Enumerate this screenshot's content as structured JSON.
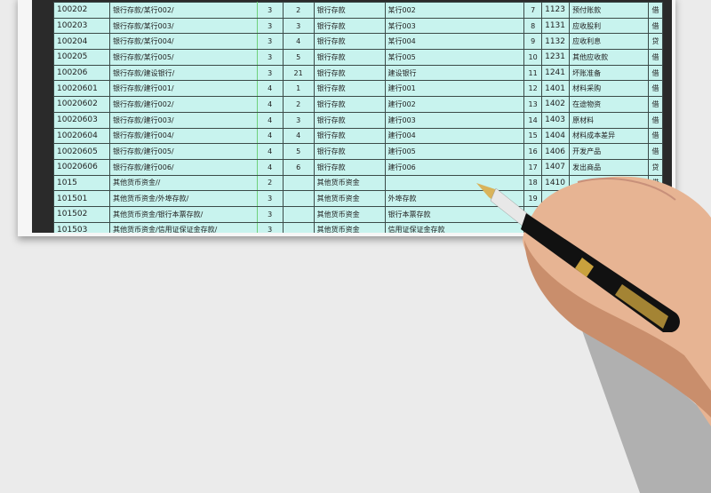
{
  "rows": [
    {
      "code": "100202",
      "path": "银行存款/某行002/",
      "level": "3",
      "sub": "2",
      "parent": "银行存款",
      "name": "某行002",
      "seq": "7",
      "acct_code": "1123",
      "acct_name": "预付账款",
      "dir": "借"
    },
    {
      "code": "100203",
      "path": "银行存款/某行003/",
      "level": "3",
      "sub": "3",
      "parent": "银行存款",
      "name": "某行003",
      "seq": "8",
      "acct_code": "1131",
      "acct_name": "应收股利",
      "dir": "借"
    },
    {
      "code": "100204",
      "path": "银行存款/某行004/",
      "level": "3",
      "sub": "4",
      "parent": "银行存款",
      "name": "某行004",
      "seq": "9",
      "acct_code": "1132",
      "acct_name": "应收利息",
      "dir": "贷"
    },
    {
      "code": "100205",
      "path": "银行存款/某行005/",
      "level": "3",
      "sub": "5",
      "parent": "银行存款",
      "name": "某行005",
      "seq": "10",
      "acct_code": "1231",
      "acct_name": "其他应收款",
      "dir": "借"
    },
    {
      "code": "100206",
      "path": "银行存款/建设银行/",
      "level": "3",
      "sub": "21",
      "parent": "银行存款",
      "name": "建设银行",
      "seq": "11",
      "acct_code": "1241",
      "acct_name": "坏账准备",
      "dir": "借"
    },
    {
      "code": "10020601",
      "path": "银行存款/建行001/",
      "level": "4",
      "sub": "1",
      "parent": "银行存款",
      "name": "建行001",
      "seq": "12",
      "acct_code": "1401",
      "acct_name": "材料采购",
      "dir": "借"
    },
    {
      "code": "10020602",
      "path": "银行存款/建行002/",
      "level": "4",
      "sub": "2",
      "parent": "银行存款",
      "name": "建行002",
      "seq": "13",
      "acct_code": "1402",
      "acct_name": "在途物资",
      "dir": "借"
    },
    {
      "code": "10020603",
      "path": "银行存款/建行003/",
      "level": "4",
      "sub": "3",
      "parent": "银行存款",
      "name": "建行003",
      "seq": "14",
      "acct_code": "1403",
      "acct_name": "原材料",
      "dir": "借"
    },
    {
      "code": "10020604",
      "path": "银行存款/建行004/",
      "level": "4",
      "sub": "4",
      "parent": "银行存款",
      "name": "建行004",
      "seq": "15",
      "acct_code": "1404",
      "acct_name": "材料成本差异",
      "dir": "借"
    },
    {
      "code": "10020605",
      "path": "银行存款/建行005/",
      "level": "4",
      "sub": "5",
      "parent": "银行存款",
      "name": "建行005",
      "seq": "16",
      "acct_code": "1406",
      "acct_name": "开发产品",
      "dir": "借"
    },
    {
      "code": "10020606",
      "path": "银行存款/建行006/",
      "level": "4",
      "sub": "6",
      "parent": "银行存款",
      "name": "建行006",
      "seq": "17",
      "acct_code": "1407",
      "acct_name": "发出商品",
      "dir": "贷"
    },
    {
      "code": "1015",
      "path": "其他货币资金//",
      "level": "2",
      "sub": "",
      "parent": "其他货币资金",
      "name": "",
      "seq": "18",
      "acct_code": "1410",
      "acct_name": "",
      "dir": "借"
    },
    {
      "code": "101501",
      "path": "其他货币资金/外埠存款/",
      "level": "3",
      "sub": "",
      "parent": "其他货币资金",
      "name": "外埠存款",
      "seq": "19",
      "acct_code": "",
      "acct_name": "",
      "dir": ""
    },
    {
      "code": "101502",
      "path": "其他货币资金/银行本票存款/",
      "level": "3",
      "sub": "",
      "parent": "其他货币资金",
      "name": "银行本票存款",
      "seq": "",
      "acct_code": "",
      "acct_name": "",
      "dir": ""
    },
    {
      "code": "101503",
      "path": "其他货币资金/信用证保证金存款/",
      "level": "3",
      "sub": "",
      "parent": "其他货币资金",
      "name": "信用证保证金存款",
      "seq": "",
      "acct_code": "",
      "acct_name": "",
      "dir": ""
    }
  ]
}
